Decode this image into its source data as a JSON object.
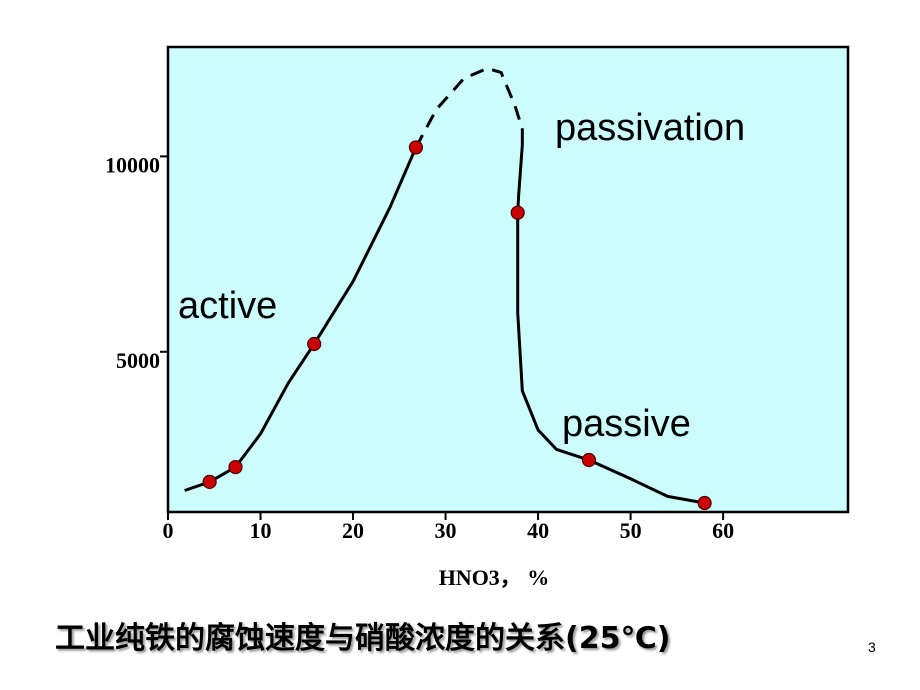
{
  "chart_data": {
    "type": "line",
    "xlabel": "HNO3， %",
    "caption": "工业纯铁的腐蚀速度与硝酸浓度的关系(25℃)",
    "page_number": "3",
    "annotations": [
      "passivation",
      "active",
      "passive"
    ],
    "xlim": [
      0,
      73.5
    ],
    "ylim": [
      900,
      12800
    ],
    "xticks": [
      0,
      10,
      20,
      30,
      40,
      50,
      60
    ],
    "yticks": [
      5000,
      10000
    ],
    "background": "#ccfcfc",
    "series": [
      {
        "color": "#000000",
        "dashed": false,
        "markers": false,
        "x": [
          1.8,
          4.5,
          7.3,
          10,
          13,
          15.8,
          20,
          24,
          26.8
        ],
        "values": [
          1450,
          1670,
          2050,
          2900,
          4200,
          5200,
          6800,
          8700,
          10230
        ]
      },
      {
        "color": "#000000",
        "dashed": true,
        "markers": false,
        "x": [
          26.8,
          29,
          32,
          34.5,
          36,
          37.5,
          38.3
        ],
        "values": [
          10230,
          11200,
          12000,
          12250,
          12150,
          11300,
          10700
        ]
      },
      {
        "color": "#000000",
        "dashed": false,
        "markers": false,
        "x": [
          38.3,
          38.3,
          37.9,
          37.8,
          37.8,
          38.3,
          40,
          42,
          45.5,
          50,
          54,
          58
        ],
        "values": [
          10700,
          10300,
          9000,
          8560,
          6000,
          4000,
          3000,
          2500,
          2230,
          1750,
          1300,
          1130
        ]
      },
      {
        "color": "#cc0000",
        "dashed": false,
        "markers": true,
        "x": [
          4.5,
          7.3,
          15.8,
          26.8,
          37.8,
          45.5,
          58
        ],
        "values": [
          1670,
          2050,
          5200,
          10230,
          8560,
          2230,
          1130
        ]
      }
    ]
  }
}
